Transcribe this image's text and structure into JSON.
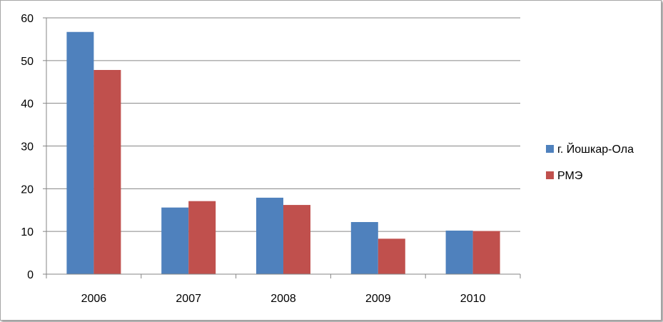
{
  "chart_data": {
    "type": "bar",
    "title": "",
    "xlabel": "",
    "ylabel": "",
    "categories": [
      "2006",
      "2007",
      "2008",
      "2009",
      "2010"
    ],
    "series": [
      {
        "name": "г. Йошкар-Ола",
        "color": "#4f81bd",
        "values": [
          56.7,
          15.6,
          17.9,
          12.2,
          10.2
        ]
      },
      {
        "name": "РМЭ",
        "color": "#c0504d",
        "values": [
          47.8,
          17.1,
          16.2,
          8.3,
          10.1
        ]
      }
    ],
    "ylim": [
      0,
      60
    ],
    "yticks": [
      0,
      10,
      20,
      30,
      40,
      50,
      60
    ],
    "grid": true,
    "legend_position": "right"
  }
}
